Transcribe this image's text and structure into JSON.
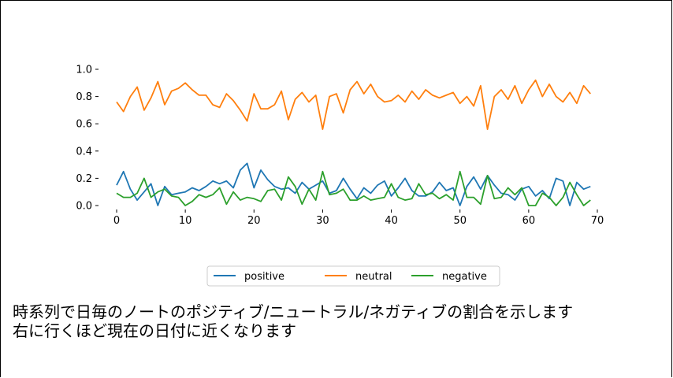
{
  "chart_data": {
    "type": "line",
    "x": [
      0,
      1,
      2,
      3,
      4,
      5,
      6,
      7,
      8,
      9,
      10,
      11,
      12,
      13,
      14,
      15,
      16,
      17,
      18,
      19,
      20,
      21,
      22,
      23,
      24,
      25,
      26,
      27,
      28,
      29,
      30,
      31,
      32,
      33,
      34,
      35,
      36,
      37,
      38,
      39,
      40,
      41,
      42,
      43,
      44,
      45,
      46,
      47,
      48,
      49,
      50,
      51,
      52,
      53,
      54,
      55,
      56,
      57,
      58,
      59,
      60,
      61,
      62,
      63,
      64,
      65,
      66,
      67,
      68,
      69
    ],
    "series": [
      {
        "name": "positive",
        "color": "#1f77b4",
        "values": [
          0.15,
          0.25,
          0.12,
          0.04,
          0.1,
          0.16,
          0.0,
          0.14,
          0.08,
          0.09,
          0.1,
          0.13,
          0.11,
          0.14,
          0.18,
          0.16,
          0.18,
          0.13,
          0.26,
          0.31,
          0.13,
          0.26,
          0.19,
          0.14,
          0.12,
          0.13,
          0.09,
          0.17,
          0.12,
          0.15,
          0.18,
          0.09,
          0.11,
          0.2,
          0.12,
          0.05,
          0.13,
          0.09,
          0.15,
          0.18,
          0.07,
          0.13,
          0.2,
          0.11,
          0.07,
          0.07,
          0.1,
          0.17,
          0.11,
          0.13,
          0.0,
          0.14,
          0.21,
          0.12,
          0.22,
          0.15,
          0.09,
          0.08,
          0.04,
          0.12,
          0.14,
          0.07,
          0.11,
          0.05,
          0.2,
          0.18,
          0.0,
          0.17,
          0.12,
          0.14
        ]
      },
      {
        "name": "neutral",
        "color": "#ff7f0e",
        "values": [
          0.76,
          0.69,
          0.8,
          0.87,
          0.7,
          0.79,
          0.91,
          0.74,
          0.84,
          0.86,
          0.9,
          0.85,
          0.81,
          0.81,
          0.74,
          0.72,
          0.82,
          0.77,
          0.7,
          0.62,
          0.82,
          0.71,
          0.71,
          0.74,
          0.84,
          0.63,
          0.78,
          0.83,
          0.76,
          0.81,
          0.56,
          0.8,
          0.82,
          0.68,
          0.85,
          0.91,
          0.82,
          0.89,
          0.8,
          0.76,
          0.77,
          0.81,
          0.76,
          0.84,
          0.78,
          0.85,
          0.81,
          0.79,
          0.81,
          0.83,
          0.75,
          0.8,
          0.73,
          0.88,
          0.56,
          0.8,
          0.85,
          0.78,
          0.88,
          0.75,
          0.85,
          0.92,
          0.8,
          0.89,
          0.8,
          0.76,
          0.83,
          0.75,
          0.88,
          0.82
        ]
      },
      {
        "name": "negative",
        "color": "#2ca02c",
        "values": [
          0.09,
          0.06,
          0.06,
          0.09,
          0.2,
          0.06,
          0.1,
          0.12,
          0.07,
          0.06,
          0.0,
          0.03,
          0.08,
          0.06,
          0.08,
          0.13,
          0.01,
          0.1,
          0.04,
          0.06,
          0.05,
          0.03,
          0.11,
          0.12,
          0.04,
          0.21,
          0.14,
          0.01,
          0.12,
          0.04,
          0.25,
          0.08,
          0.09,
          0.12,
          0.04,
          0.04,
          0.07,
          0.04,
          0.05,
          0.06,
          0.16,
          0.06,
          0.04,
          0.05,
          0.16,
          0.08,
          0.09,
          0.05,
          0.08,
          0.04,
          0.25,
          0.06,
          0.06,
          0.01,
          0.22,
          0.05,
          0.06,
          0.13,
          0.08,
          0.13,
          0.0,
          0.0,
          0.09,
          0.06,
          0.0,
          0.06,
          0.17,
          0.08,
          0.0,
          0.04
        ]
      }
    ],
    "xticks": [
      0,
      10,
      20,
      30,
      40,
      50,
      60,
      70
    ],
    "yticks": [
      0.0,
      0.2,
      0.4,
      0.6,
      0.8,
      1.0
    ],
    "ytick_labels": [
      "0.0",
      "0.2",
      "0.4",
      "0.6",
      "0.8",
      "1.0"
    ],
    "xlim": [
      0,
      70
    ],
    "ylim": [
      0,
      1.0
    ],
    "grid": false,
    "legend_position": "bottom-center",
    "title": "",
    "xlabel": "",
    "ylabel": ""
  },
  "caption": {
    "line1": "時系列で日毎のノートのポジティブ/ニュートラル/ネガティブの割合を示します",
    "line2": "右に行くほど現在の日付に近くなります"
  }
}
